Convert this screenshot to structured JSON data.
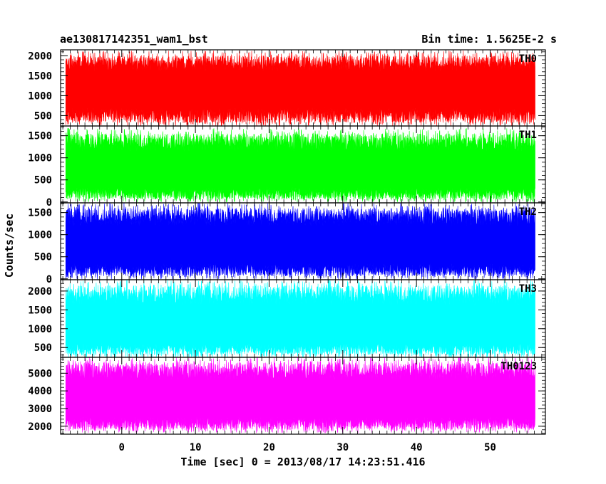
{
  "chart_data": {
    "type": "line",
    "title_left": "ae130817142351_wam1_bst",
    "title_right": "Bin time: 1.5625E-2 s",
    "xlabel": "Time [sec] 0 = 2013/08/17 14:23:51.416",
    "ylabel": "Counts/sec",
    "xlim": [
      -8.3,
      57.5
    ],
    "x_ticks": [
      0,
      10,
      20,
      30,
      40,
      50
    ],
    "x_data_range": [
      -7.6,
      56.1
    ],
    "grid": false,
    "legend": "none",
    "panels": [
      {
        "label": "TH0",
        "color": "#ff0000",
        "ylim": [
          240,
          2150
        ],
        "y_ticks": [
          500,
          1000,
          1500,
          2000
        ],
        "typical_low": 320,
        "typical_high": 2000,
        "mean": 1150
      },
      {
        "label": "TH1",
        "color": "#00ff00",
        "ylim": [
          -20,
          1720
        ],
        "y_ticks": [
          0,
          500,
          1000,
          1500
        ],
        "typical_low": 60,
        "typical_high": 1550,
        "mean": 650
      },
      {
        "label": "TH2",
        "color": "#0000ff",
        "ylim": [
          -20,
          1720
        ],
        "y_ticks": [
          0,
          500,
          1000,
          1500
        ],
        "typical_low": 60,
        "typical_high": 1600,
        "mean": 700
      },
      {
        "label": "TH3",
        "color": "#00ffff",
        "ylim": [
          240,
          2300
        ],
        "y_ticks": [
          500,
          1000,
          1500,
          2000
        ],
        "typical_low": 300,
        "typical_high": 2150,
        "mean": 1000
      },
      {
        "label": "TH0123",
        "color": "#ff00ff",
        "ylim": [
          1550,
          5900
        ],
        "y_ticks": [
          2000,
          3000,
          4000,
          5000
        ],
        "typical_low": 1800,
        "typical_high": 5600,
        "mean": 3400
      }
    ]
  }
}
